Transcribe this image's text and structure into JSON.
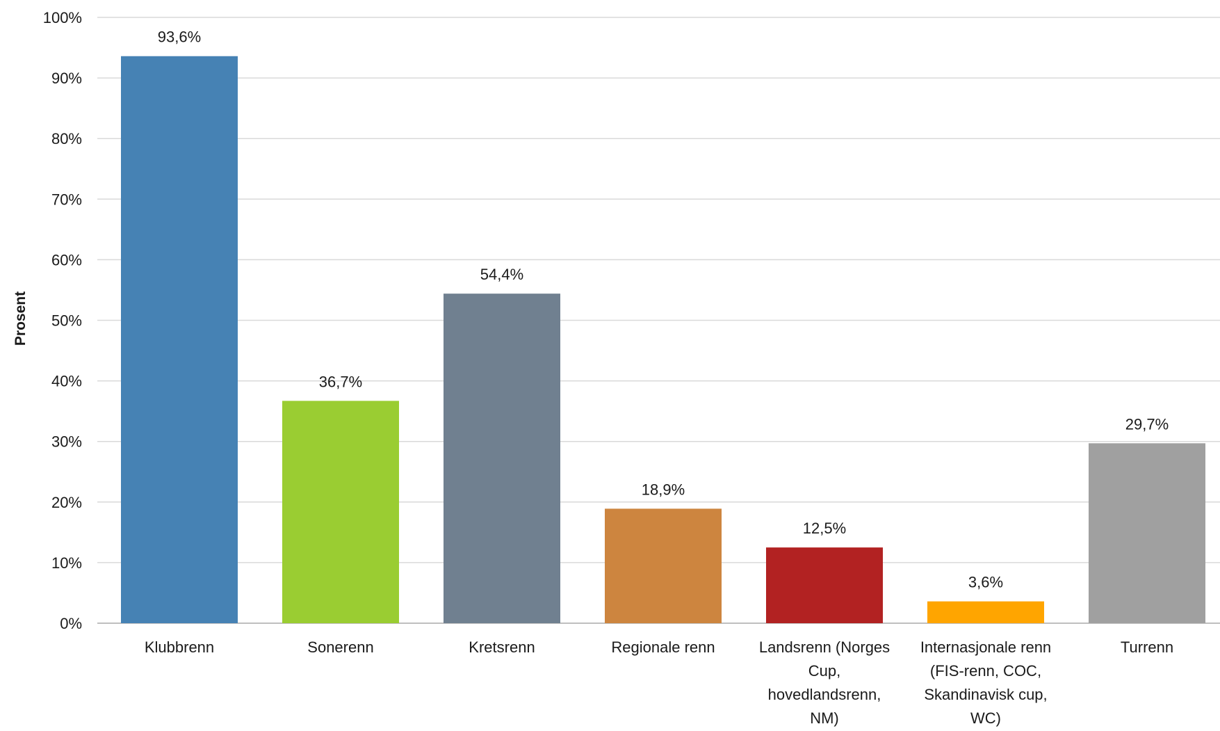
{
  "chart_data": {
    "type": "bar",
    "title": "",
    "xlabel": "",
    "ylabel": "Prosent",
    "ylim": [
      0,
      100
    ],
    "y_ticks": [
      0,
      10,
      20,
      30,
      40,
      50,
      60,
      70,
      80,
      90,
      100
    ],
    "y_tick_labels": [
      "0%",
      "10%",
      "20%",
      "30%",
      "40%",
      "50%",
      "60%",
      "70%",
      "80%",
      "90%",
      "100%"
    ],
    "grid": true,
    "legend": "none",
    "categories": [
      [
        "Klubbrenn"
      ],
      [
        "Sonerenn"
      ],
      [
        "Kretsrenn"
      ],
      [
        "Regionale renn"
      ],
      [
        "Landsrenn (Norges",
        "Cup,",
        "hovedlandsrenn,",
        "NM)"
      ],
      [
        "Internasjonale renn",
        "(FIS-renn, COC,",
        "Skandinavisk cup,",
        "WC)"
      ],
      [
        "Turrenn"
      ]
    ],
    "values": [
      93.6,
      36.7,
      54.4,
      18.9,
      12.5,
      3.6,
      29.7
    ],
    "data_labels": [
      "93,6%",
      "36,7%",
      "54,4%",
      "18,9%",
      "12,5%",
      "3,6%",
      "29,7%"
    ],
    "colors": [
      "#4682b4",
      "#9acd32",
      "#708090",
      "#cd853f",
      "#b22222",
      "#ffa500",
      "#a0a0a0"
    ],
    "gridline_color": "#d9d9d9",
    "axis_color": "#bfbfbf"
  }
}
